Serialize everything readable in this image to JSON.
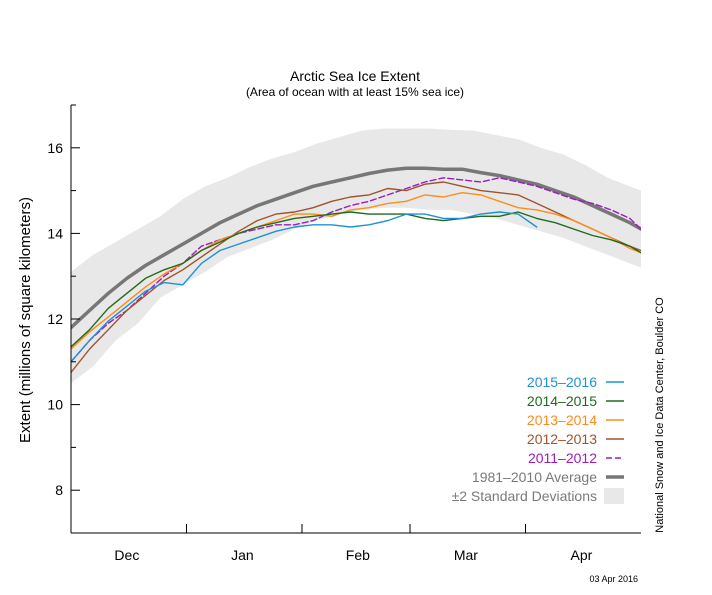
{
  "chart_data": {
    "type": "line",
    "title": "Arctic Sea Ice Extent",
    "subtitle": "(Area of ocean with at least 15% sea ice)",
    "ylabel": "Extent (millions of square kilometers)",
    "xlabel": "",
    "ylim": [
      7,
      17
    ],
    "yticks": [
      8,
      10,
      12,
      14,
      16
    ],
    "x_domain_days": [
      0,
      153
    ],
    "month_labels": [
      {
        "label": "Dec",
        "day": 15
      },
      {
        "label": "Jan",
        "day": 46
      },
      {
        "label": "Feb",
        "day": 77
      },
      {
        "label": "Mar",
        "day": 106
      },
      {
        "label": "Apr",
        "day": 137
      }
    ],
    "month_boundaries_days": [
      31,
      62,
      91,
      122
    ],
    "source_text": "National Snow and Ice Data Center, Boulder CO",
    "date_text": "03 Apr 2016",
    "legend_position": "lower-right",
    "band": {
      "name": "±2 Standard Deviations",
      "color": "#e8e8e8",
      "x": [
        0,
        6,
        12,
        18,
        24,
        30,
        36,
        42,
        48,
        54,
        60,
        66,
        72,
        78,
        84,
        90,
        96,
        102,
        108,
        114,
        120,
        126,
        132,
        138,
        144,
        150,
        153
      ],
      "upper": [
        13.1,
        13.5,
        13.8,
        14.1,
        14.4,
        14.8,
        15.1,
        15.3,
        15.55,
        15.75,
        15.9,
        16.1,
        16.25,
        16.4,
        16.45,
        16.45,
        16.45,
        16.42,
        16.4,
        16.3,
        16.2,
        16.0,
        15.85,
        15.6,
        15.3,
        15.1,
        15.0
      ],
      "lower": [
        10.5,
        10.9,
        11.5,
        11.9,
        12.5,
        12.8,
        13.1,
        13.45,
        13.65,
        13.85,
        14.1,
        14.3,
        14.45,
        14.55,
        14.6,
        14.6,
        14.55,
        14.55,
        14.45,
        14.35,
        14.2,
        14.05,
        13.9,
        13.7,
        13.5,
        13.3,
        13.2
      ]
    },
    "series": [
      {
        "name": "1981–2010 Average",
        "color": "#777777",
        "width": 3.5,
        "dash": "",
        "x": [
          0,
          5,
          10,
          15,
          20,
          25,
          30,
          35,
          40,
          45,
          50,
          55,
          60,
          65,
          70,
          75,
          80,
          85,
          90,
          95,
          100,
          105,
          110,
          115,
          120,
          125,
          130,
          135,
          140,
          145,
          150,
          153
        ],
        "y": [
          11.8,
          12.2,
          12.6,
          12.95,
          13.25,
          13.5,
          13.75,
          14.0,
          14.25,
          14.45,
          14.65,
          14.8,
          14.95,
          15.1,
          15.2,
          15.3,
          15.4,
          15.48,
          15.52,
          15.52,
          15.5,
          15.5,
          15.42,
          15.35,
          15.25,
          15.15,
          15.0,
          14.85,
          14.65,
          14.45,
          14.25,
          14.1
        ]
      },
      {
        "name": "2011–2012",
        "color": "#9a1fb8",
        "width": 1.4,
        "dash": "6,3",
        "x": [
          0,
          5,
          10,
          15,
          20,
          25,
          30,
          35,
          40,
          45,
          50,
          55,
          60,
          65,
          70,
          75,
          80,
          85,
          90,
          95,
          100,
          105,
          110,
          115,
          120,
          125,
          130,
          135,
          140,
          145,
          150,
          153
        ],
        "y": [
          11.0,
          11.5,
          11.9,
          12.2,
          12.6,
          13.0,
          13.3,
          13.7,
          13.85,
          14.0,
          14.1,
          14.2,
          14.2,
          14.3,
          14.5,
          14.65,
          14.75,
          14.9,
          15.05,
          15.2,
          15.3,
          15.25,
          15.2,
          15.3,
          15.2,
          15.1,
          14.95,
          14.8,
          14.7,
          14.55,
          14.35,
          14.1
        ]
      },
      {
        "name": "2012–2013",
        "color": "#a0522d",
        "width": 1.4,
        "dash": "",
        "x": [
          0,
          5,
          10,
          15,
          20,
          25,
          30,
          35,
          40,
          45,
          50,
          55,
          60,
          65,
          70,
          75,
          80,
          85,
          90,
          95,
          100,
          105,
          110,
          115,
          120,
          125,
          130,
          135,
          140,
          145,
          150,
          153
        ],
        "y": [
          10.75,
          11.3,
          11.75,
          12.2,
          12.55,
          12.9,
          13.15,
          13.45,
          13.75,
          14.05,
          14.3,
          14.45,
          14.5,
          14.6,
          14.75,
          14.85,
          14.9,
          15.05,
          15.0,
          15.15,
          15.2,
          15.1,
          15.0,
          14.95,
          14.9,
          14.7,
          14.5,
          14.3,
          14.1,
          13.9,
          13.7,
          13.6
        ]
      },
      {
        "name": "2013–2014",
        "color": "#ff8c1a",
        "width": 1.4,
        "dash": "",
        "x": [
          0,
          5,
          10,
          15,
          20,
          25,
          30,
          35,
          40,
          45,
          50,
          55,
          60,
          65,
          70,
          75,
          80,
          85,
          90,
          95,
          100,
          105,
          110,
          115,
          120,
          125,
          130,
          135,
          140,
          145,
          150,
          153
        ],
        "y": [
          11.3,
          11.7,
          12.05,
          12.4,
          12.75,
          13.05,
          13.3,
          13.6,
          13.85,
          14.0,
          14.15,
          14.3,
          14.45,
          14.45,
          14.4,
          14.55,
          14.6,
          14.7,
          14.75,
          14.9,
          14.85,
          14.95,
          14.9,
          14.75,
          14.6,
          14.55,
          14.45,
          14.3,
          14.1,
          13.9,
          13.65,
          13.55
        ]
      },
      {
        "name": "2014–2015",
        "color": "#1e6b1e",
        "width": 1.4,
        "dash": "",
        "x": [
          0,
          5,
          10,
          15,
          20,
          25,
          30,
          35,
          40,
          45,
          50,
          55,
          60,
          65,
          70,
          75,
          80,
          85,
          90,
          95,
          100,
          105,
          110,
          115,
          120,
          125,
          130,
          135,
          140,
          145,
          150,
          153
        ],
        "y": [
          11.35,
          11.75,
          12.25,
          12.6,
          12.95,
          13.15,
          13.3,
          13.6,
          13.8,
          14.0,
          14.15,
          14.25,
          14.35,
          14.4,
          14.45,
          14.5,
          14.45,
          14.45,
          14.45,
          14.35,
          14.3,
          14.35,
          14.4,
          14.4,
          14.5,
          14.35,
          14.25,
          14.1,
          13.95,
          13.85,
          13.7,
          13.55
        ]
      },
      {
        "name": "2015–2016",
        "color": "#1e90d6",
        "width": 1.4,
        "dash": "",
        "x": [
          0,
          5,
          10,
          15,
          20,
          25,
          30,
          35,
          40,
          45,
          50,
          55,
          60,
          65,
          70,
          75,
          80,
          85,
          90,
          95,
          100,
          105,
          110,
          115,
          120,
          125
        ],
        "y": [
          11.0,
          11.5,
          11.95,
          12.3,
          12.65,
          12.85,
          12.8,
          13.3,
          13.6,
          13.75,
          13.9,
          14.05,
          14.15,
          14.2,
          14.2,
          14.15,
          14.2,
          14.3,
          14.45,
          14.45,
          14.35,
          14.35,
          14.45,
          14.5,
          14.45,
          14.15
        ]
      }
    ],
    "legend_order": [
      "2015–2016",
      "2014–2015",
      "2013–2014",
      "2012–2013",
      "2011–2012",
      "1981–2010 Average",
      "±2 Standard Deviations"
    ]
  }
}
